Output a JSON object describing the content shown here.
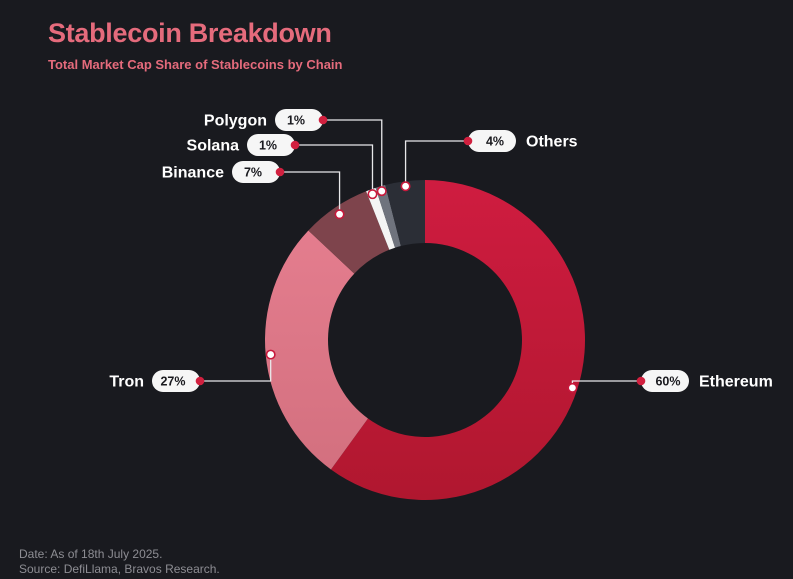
{
  "header": {
    "title": "Stablecoin Breakdown",
    "subtitle": "Total Market Cap Share of Stablecoins by Chain"
  },
  "footer": {
    "date": "Date: As of 18th July 2025.",
    "source": "Source: DefiLlama, Bravos Research."
  },
  "chart_data": {
    "type": "pie",
    "variant": "donut",
    "unit": "%",
    "slices": [
      {
        "label": "Ethereum",
        "value": 60,
        "display": "60%",
        "color": "#c8193c"
      },
      {
        "label": "Tron",
        "value": 27,
        "display": "27%",
        "color": "#e07a8b"
      },
      {
        "label": "Binance",
        "value": 7,
        "display": "7%",
        "color": "#7e444c"
      },
      {
        "label": "Solana",
        "value": 1,
        "display": "1%",
        "color": "#f4f4f4"
      },
      {
        "label": "Polygon",
        "value": 1,
        "display": "1%",
        "color": "#6f737d"
      },
      {
        "label": "Others",
        "value": 4,
        "display": "4%",
        "color": "#2b2e36"
      }
    ],
    "accent_color": "#d1203f",
    "background_color": "#191a1f"
  }
}
